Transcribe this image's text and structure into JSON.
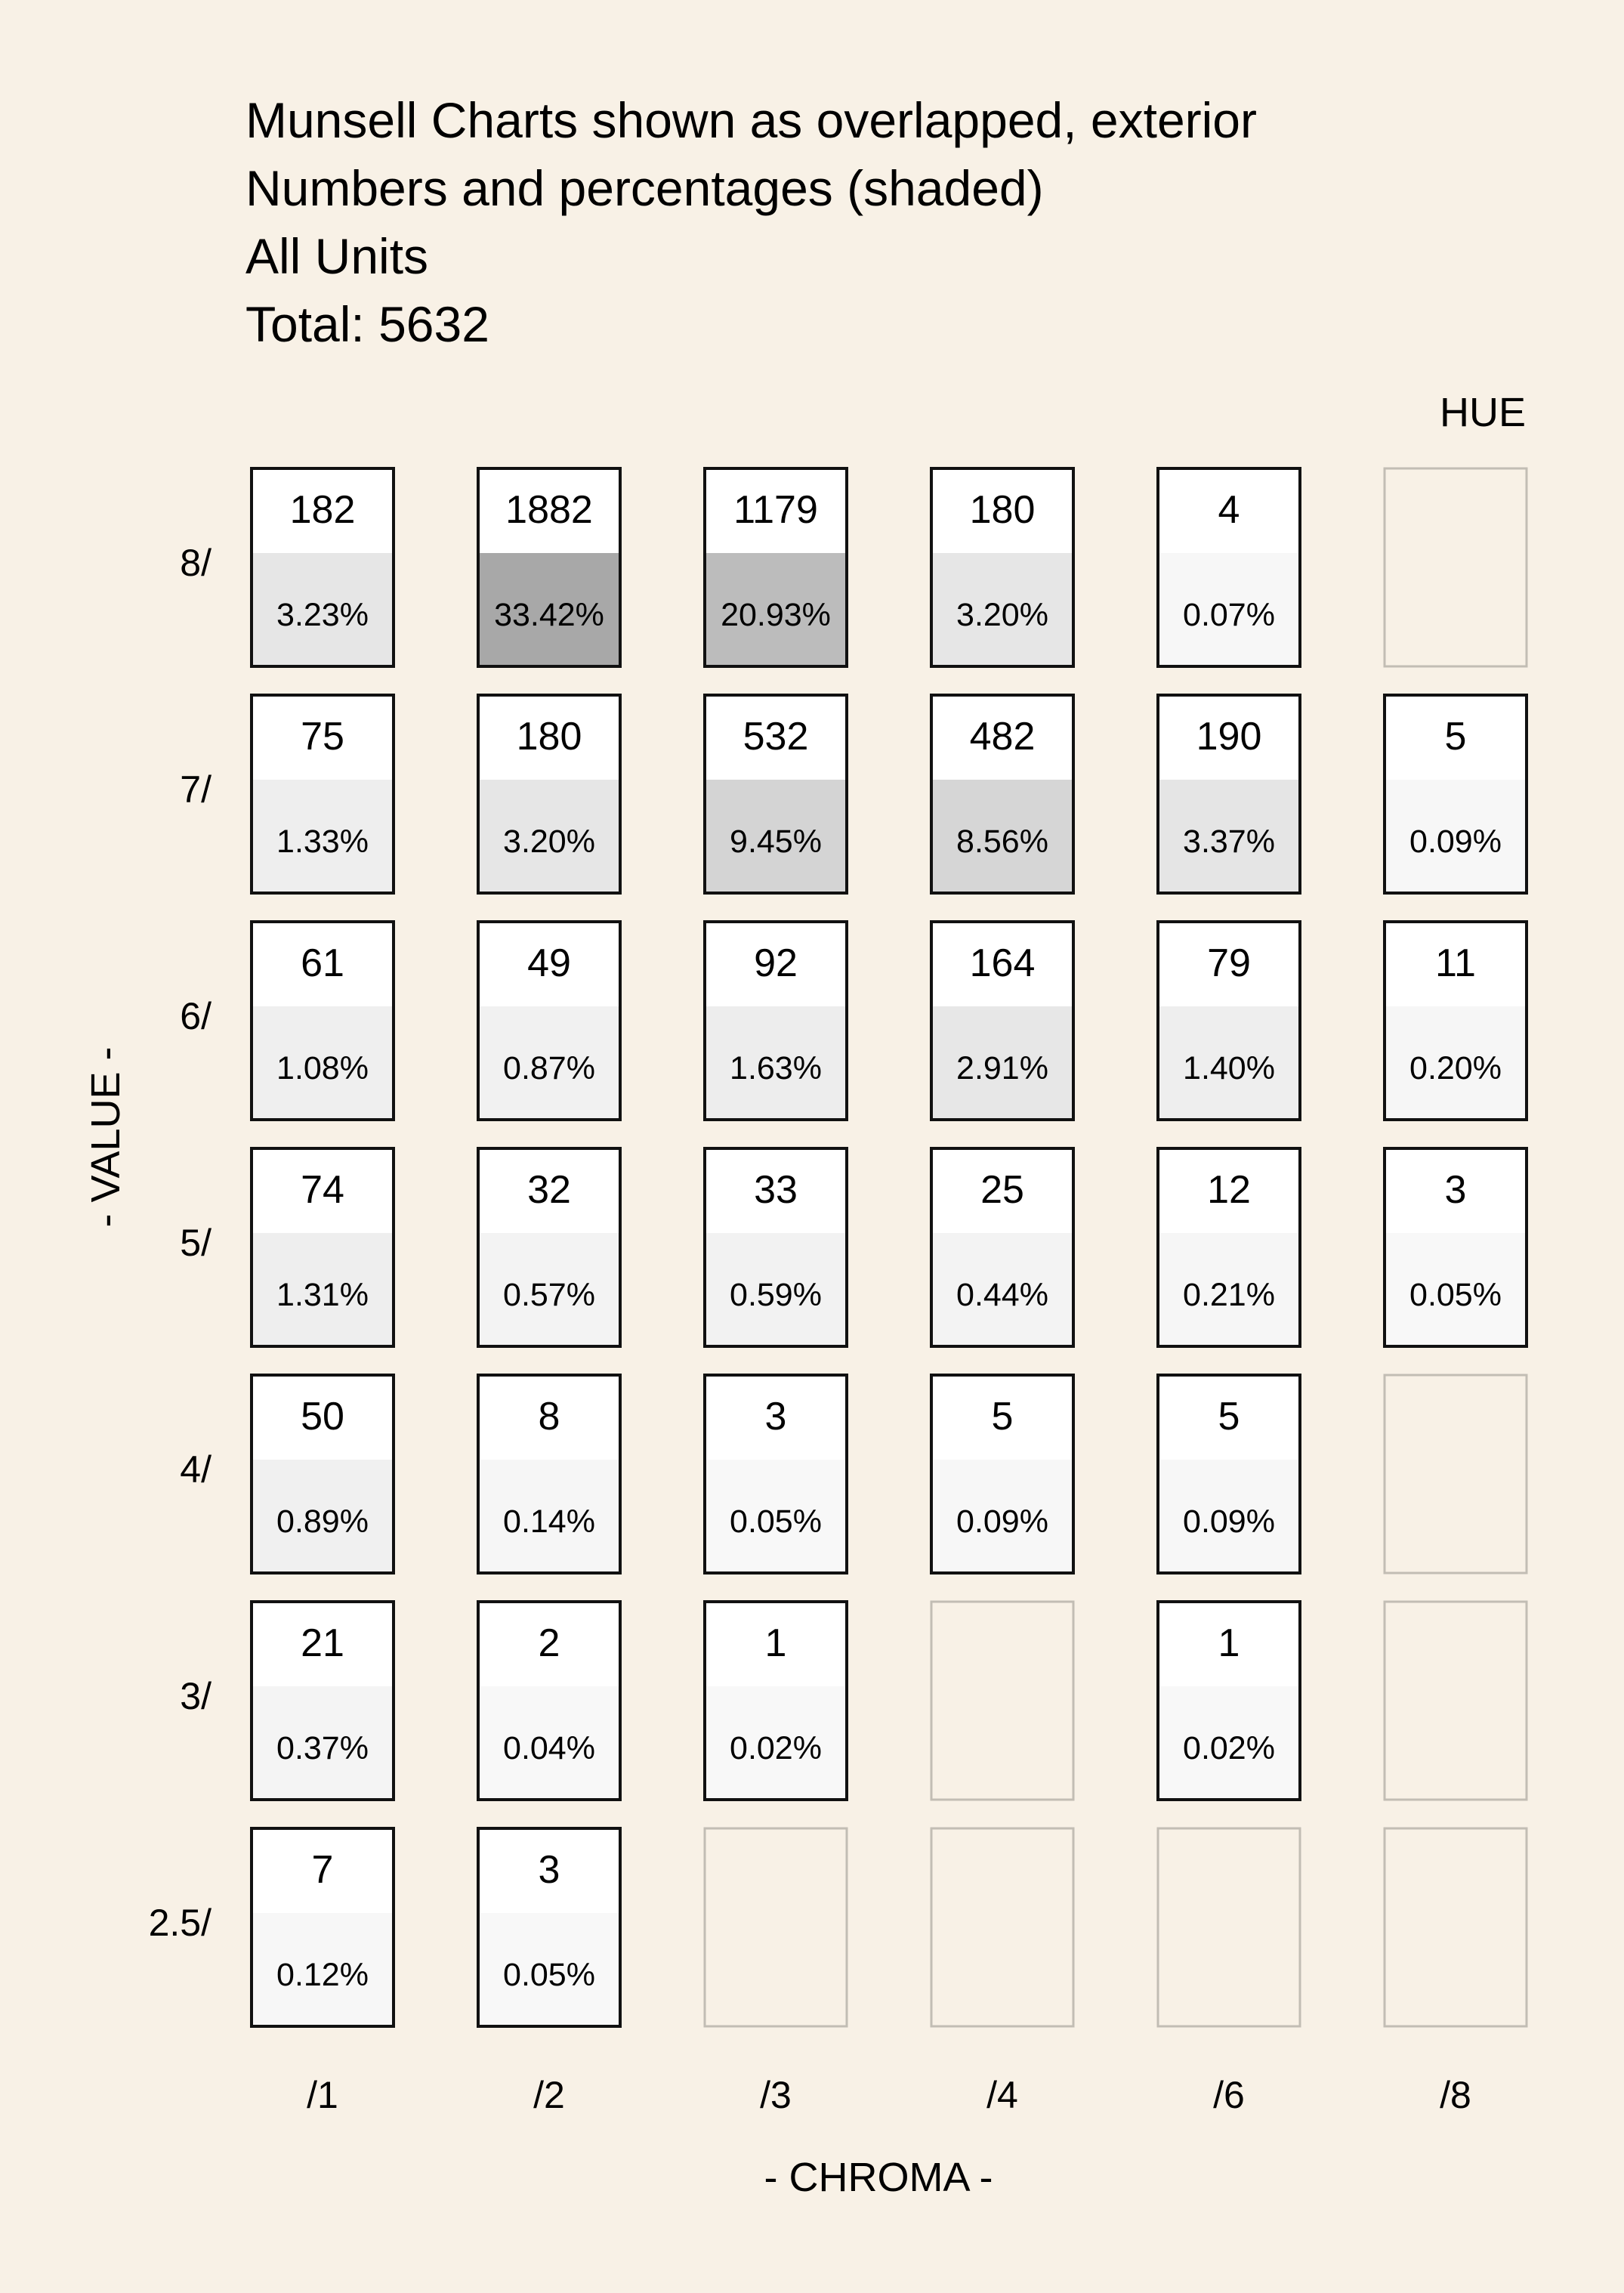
{
  "chart_data": {
    "type": "table",
    "title_lines": [
      "Munsell Charts shown as overlapped, exterior",
      "Numbers and percentages (shaded)",
      "All Units",
      "Total: 5632"
    ],
    "hue_label": "HUE",
    "value_axis_label": "- VALUE -",
    "chroma_axis_label": "- CHROMA -",
    "columns": [
      "/1",
      "/2",
      "/3",
      "/4",
      "/6",
      "/8"
    ],
    "rows": [
      {
        "label": "8/",
        "cells": [
          {
            "count": "182",
            "pct": "3.23%",
            "share": 3.23
          },
          {
            "count": "1882",
            "pct": "33.42%",
            "share": 33.42
          },
          {
            "count": "1179",
            "pct": "20.93%",
            "share": 20.93
          },
          {
            "count": "180",
            "pct": "3.20%",
            "share": 3.2
          },
          {
            "count": "4",
            "pct": "0.07%",
            "share": 0.07
          },
          null
        ]
      },
      {
        "label": "7/",
        "cells": [
          {
            "count": "75",
            "pct": "1.33%",
            "share": 1.33
          },
          {
            "count": "180",
            "pct": "3.20%",
            "share": 3.2
          },
          {
            "count": "532",
            "pct": "9.45%",
            "share": 9.45
          },
          {
            "count": "482",
            "pct": "8.56%",
            "share": 8.56
          },
          {
            "count": "190",
            "pct": "3.37%",
            "share": 3.37
          },
          {
            "count": "5",
            "pct": "0.09%",
            "share": 0.09
          }
        ]
      },
      {
        "label": "6/",
        "cells": [
          {
            "count": "61",
            "pct": "1.08%",
            "share": 1.08
          },
          {
            "count": "49",
            "pct": "0.87%",
            "share": 0.87
          },
          {
            "count": "92",
            "pct": "1.63%",
            "share": 1.63
          },
          {
            "count": "164",
            "pct": "2.91%",
            "share": 2.91
          },
          {
            "count": "79",
            "pct": "1.40%",
            "share": 1.4
          },
          {
            "count": "11",
            "pct": "0.20%",
            "share": 0.2
          }
        ]
      },
      {
        "label": "5/",
        "cells": [
          {
            "count": "74",
            "pct": "1.31%",
            "share": 1.31
          },
          {
            "count": "32",
            "pct": "0.57%",
            "share": 0.57
          },
          {
            "count": "33",
            "pct": "0.59%",
            "share": 0.59
          },
          {
            "count": "25",
            "pct": "0.44%",
            "share": 0.44
          },
          {
            "count": "12",
            "pct": "0.21%",
            "share": 0.21
          },
          {
            "count": "3",
            "pct": "0.05%",
            "share": 0.05
          }
        ]
      },
      {
        "label": "4/",
        "cells": [
          {
            "count": "50",
            "pct": "0.89%",
            "share": 0.89
          },
          {
            "count": "8",
            "pct": "0.14%",
            "share": 0.14
          },
          {
            "count": "3",
            "pct": "0.05%",
            "share": 0.05
          },
          {
            "count": "5",
            "pct": "0.09%",
            "share": 0.09
          },
          {
            "count": "5",
            "pct": "0.09%",
            "share": 0.09
          },
          null
        ]
      },
      {
        "label": "3/",
        "cells": [
          {
            "count": "21",
            "pct": "0.37%",
            "share": 0.37
          },
          {
            "count": "2",
            "pct": "0.04%",
            "share": 0.04
          },
          {
            "count": "1",
            "pct": "0.02%",
            "share": 0.02
          },
          null,
          {
            "count": "1",
            "pct": "0.02%",
            "share": 0.02
          },
          null
        ]
      },
      {
        "label": "2.5/",
        "cells": [
          {
            "count": "7",
            "pct": "0.12%",
            "share": 0.12
          },
          {
            "count": "3",
            "pct": "0.05%",
            "share": 0.05
          },
          null,
          null,
          null,
          null
        ]
      }
    ]
  },
  "colors": {
    "background": "#f8f1e6",
    "cell_fill": "#ffffff",
    "cell_border": "#111111",
    "empty_border": "#c2bdb4",
    "empty_fill": "#f8f1e6"
  }
}
